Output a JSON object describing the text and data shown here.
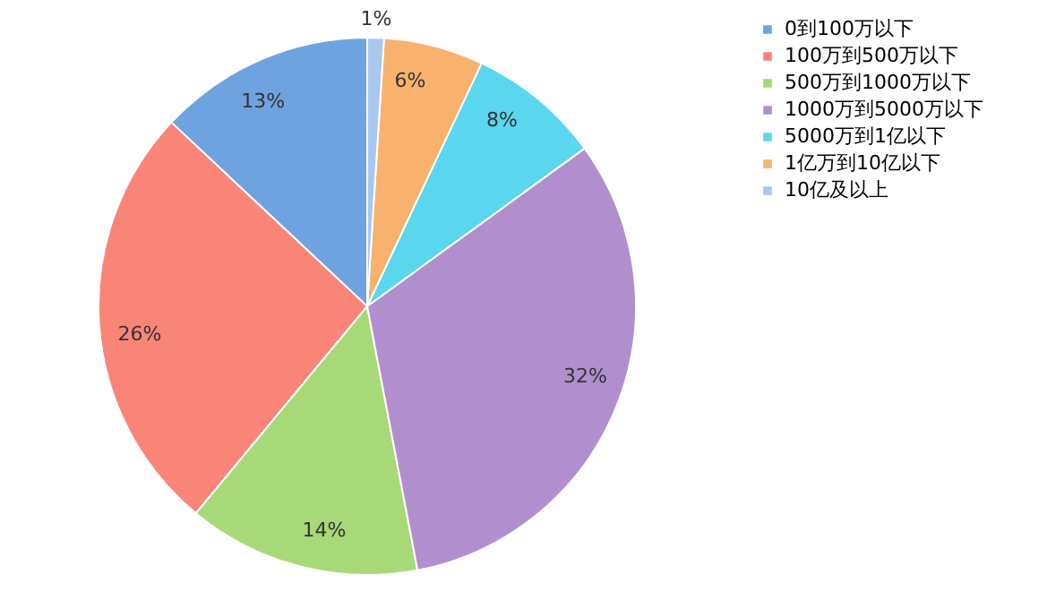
{
  "chart_data": {
    "type": "pie",
    "categories": [
      "0到100万以下",
      "100万到500万以下",
      "500万到1000万以下",
      "1000万到5000万以下",
      "5000万到1亿以下",
      "1亿万到10亿以下",
      "10亿及以上"
    ],
    "values": [
      13,
      26,
      14,
      32,
      8,
      6,
      1
    ],
    "colors": [
      "#6fa3e0",
      "#f98579",
      "#a8d978",
      "#b18fcf",
      "#5ad6ef",
      "#f9b26e",
      "#a9c7ee"
    ],
    "value_labels": [
      "13%",
      "26%",
      "14%",
      "32%",
      "8%",
      "6%",
      "1%"
    ],
    "legend": "right"
  }
}
